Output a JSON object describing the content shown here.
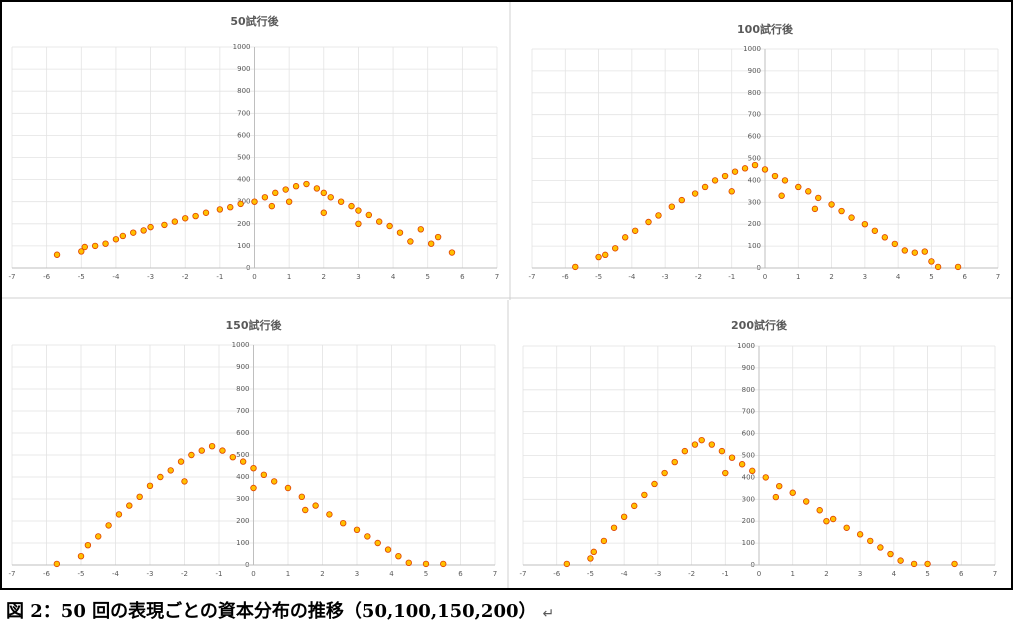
{
  "chart_data": [
    {
      "type": "scatter",
      "title": "50試行後",
      "color": "#ffc000",
      "edgecolor": "#e04000",
      "grid": true,
      "xlim": [
        -7,
        7
      ],
      "ylim": [
        0,
        1000
      ],
      "xticks": [
        -7,
        -6,
        -5,
        -4,
        -3,
        -2,
        -1,
        0,
        1,
        2,
        3,
        4,
        5,
        6,
        7
      ],
      "yticks": [
        0,
        100,
        200,
        300,
        400,
        500,
        600,
        700,
        800,
        900,
        1000
      ],
      "x": [
        -5.7,
        -5.0,
        -4.9,
        -4.6,
        -4.3,
        -4.0,
        -3.8,
        -3.5,
        -3.2,
        -3.0,
        -2.6,
        -2.3,
        -2.0,
        -1.7,
        -1.4,
        -1.0,
        -0.7,
        -0.4,
        0.0,
        0.3,
        0.6,
        0.9,
        1.2,
        1.5,
        1.8,
        2.0,
        2.2,
        2.5,
        2.8,
        3.0,
        3.3,
        3.6,
        3.9,
        4.2,
        4.5,
        4.8,
        5.1,
        5.3,
        5.7,
        1.0,
        2.0,
        3.0,
        0.5
      ],
      "y": [
        60,
        75,
        95,
        100,
        110,
        130,
        145,
        160,
        170,
        185,
        195,
        210,
        225,
        235,
        250,
        265,
        275,
        290,
        300,
        320,
        340,
        355,
        370,
        380,
        360,
        340,
        320,
        300,
        280,
        260,
        240,
        210,
        190,
        160,
        120,
        175,
        110,
        140,
        70,
        300,
        250,
        200,
        280
      ]
    },
    {
      "type": "scatter",
      "title": "100試行後",
      "color": "#ffc000",
      "edgecolor": "#e04000",
      "grid": true,
      "xlim": [
        -7,
        7
      ],
      "ylim": [
        0,
        1000
      ],
      "xticks": [
        -7,
        -6,
        -5,
        -4,
        -3,
        -2,
        -1,
        0,
        1,
        2,
        3,
        4,
        5,
        6,
        7
      ],
      "yticks": [
        0,
        100,
        200,
        300,
        400,
        500,
        600,
        700,
        800,
        900,
        1000
      ],
      "x": [
        -5.7,
        -5.0,
        -4.8,
        -4.5,
        -4.2,
        -3.9,
        -3.5,
        -3.2,
        -2.8,
        -2.5,
        -2.1,
        -1.8,
        -1.5,
        -1.2,
        -0.9,
        -0.6,
        -0.3,
        0.0,
        0.3,
        0.6,
        1.0,
        1.3,
        1.6,
        2.0,
        2.3,
        2.6,
        3.0,
        3.3,
        3.6,
        3.9,
        4.2,
        4.5,
        4.8,
        5.0,
        5.2,
        5.8,
        0.5,
        1.5,
        -1.0
      ],
      "y": [
        5,
        50,
        60,
        90,
        140,
        170,
        210,
        240,
        280,
        310,
        340,
        370,
        400,
        420,
        440,
        455,
        470,
        450,
        420,
        400,
        370,
        350,
        320,
        290,
        260,
        230,
        200,
        170,
        140,
        110,
        80,
        70,
        75,
        30,
        5,
        5,
        330,
        270,
        350
      ]
    },
    {
      "type": "scatter",
      "title": "150試行後",
      "color": "#ffc000",
      "edgecolor": "#e04000",
      "grid": true,
      "xlim": [
        -7,
        7
      ],
      "ylim": [
        0,
        1000
      ],
      "xticks": [
        -7,
        -6,
        -5,
        -4,
        -3,
        -2,
        -1,
        0,
        1,
        2,
        3,
        4,
        5,
        6,
        7
      ],
      "yticks": [
        0,
        100,
        200,
        300,
        400,
        500,
        600,
        700,
        800,
        900,
        1000
      ],
      "x": [
        -5.7,
        -5.0,
        -4.8,
        -4.5,
        -4.2,
        -3.9,
        -3.6,
        -3.3,
        -3.0,
        -2.7,
        -2.4,
        -2.1,
        -1.8,
        -1.5,
        -1.2,
        -0.9,
        -0.6,
        -0.3,
        0.0,
        0.3,
        0.6,
        1.0,
        1.4,
        1.8,
        2.2,
        2.6,
        3.0,
        3.3,
        3.6,
        3.9,
        4.2,
        4.5,
        5.0,
        5.5,
        0.0,
        1.5,
        -2.0
      ],
      "y": [
        5,
        40,
        90,
        130,
        180,
        230,
        270,
        310,
        360,
        400,
        430,
        470,
        500,
        520,
        540,
        520,
        490,
        470,
        440,
        410,
        380,
        350,
        310,
        270,
        230,
        190,
        160,
        130,
        100,
        70,
        40,
        10,
        5,
        5,
        350,
        250,
        380
      ]
    },
    {
      "type": "scatter",
      "title": "200試行後",
      "color": "#ffc000",
      "edgecolor": "#e04000",
      "grid": true,
      "xlim": [
        -7,
        7
      ],
      "ylim": [
        0,
        1000
      ],
      "xticks": [
        -7,
        -6,
        -5,
        -4,
        -3,
        -2,
        -1,
        0,
        1,
        2,
        3,
        4,
        5,
        6,
        7
      ],
      "yticks": [
        0,
        100,
        200,
        300,
        400,
        500,
        600,
        700,
        800,
        900,
        1000
      ],
      "x": [
        -5.7,
        -5.0,
        -4.9,
        -4.6,
        -4.3,
        -4.0,
        -3.7,
        -3.4,
        -3.1,
        -2.8,
        -2.5,
        -2.2,
        -1.9,
        -1.7,
        -1.4,
        -1.1,
        -0.8,
        -0.5,
        -0.2,
        0.2,
        0.6,
        1.0,
        1.4,
        1.8,
        2.2,
        2.6,
        3.0,
        3.3,
        3.6,
        3.9,
        4.2,
        4.6,
        5.0,
        5.8,
        -1.0,
        0.5,
        2.0
      ],
      "y": [
        5,
        30,
        60,
        110,
        170,
        220,
        270,
        320,
        370,
        420,
        470,
        520,
        550,
        570,
        550,
        520,
        490,
        460,
        430,
        400,
        360,
        330,
        290,
        250,
        210,
        170,
        140,
        110,
        80,
        50,
        20,
        5,
        5,
        5,
        420,
        310,
        200
      ]
    }
  ],
  "caption": "図 2：50 回の表現ごとの資本分布の推移（50,100,150,200）",
  "paragraph_mark": "↵"
}
